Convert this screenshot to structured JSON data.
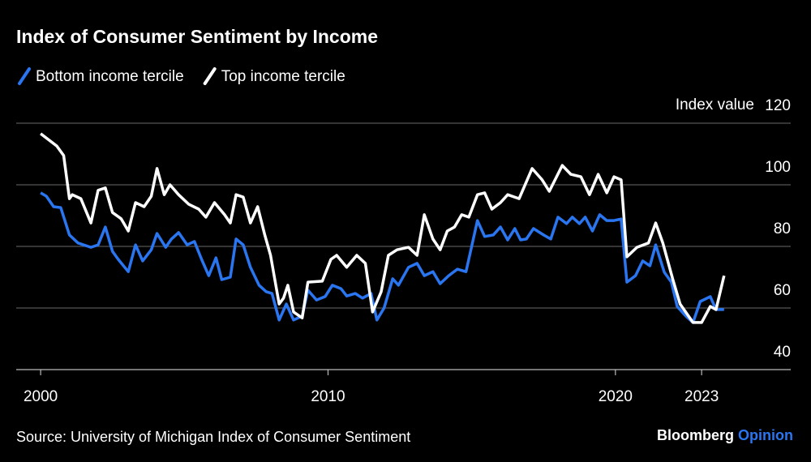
{
  "chart_data": {
    "type": "line",
    "title": "Index of Consumer Sentiment by Income",
    "y_label": "Index value",
    "source": "Source: University of Michigan Index of Consumer Sentiment",
    "branding": [
      "Bloomberg",
      "Opinion"
    ],
    "xlim": [
      1999.15,
      2026.1
    ],
    "xticks": [
      2000,
      2010,
      2020,
      2023
    ],
    "ylim": [
      40,
      120
    ],
    "yticks": [
      40,
      60,
      80,
      100,
      120
    ],
    "grid": true,
    "legend": "top-left",
    "series": [
      {
        "name": "Bottom income tercile",
        "color": "#2a75f0",
        "x": [
          2000,
          2000.2,
          2000.45,
          2000.7,
          2001.0,
          2001.3,
          2001.75,
          2002.0,
          2002.25,
          2002.5,
          2002.7,
          2003.05,
          2003.3,
          2003.55,
          2003.85,
          2004.05,
          2004.35,
          2004.55,
          2004.8,
          2005.1,
          2005.35,
          2005.6,
          2005.85,
          2006.1,
          2006.3,
          2006.6,
          2006.8,
          2007.05,
          2007.3,
          2007.6,
          2007.85,
          2008.05,
          2008.3,
          2008.55,
          2008.8,
          2009.1,
          2009.3,
          2009.6,
          2009.9,
          2010.15,
          2010.45,
          2010.65,
          2010.95,
          2011.2,
          2011.5,
          2011.7,
          2011.95,
          2012.25,
          2012.45,
          2012.8,
          2013.1,
          2013.35,
          2013.65,
          2013.9,
          2014.2,
          2014.5,
          2014.8,
          2015.2,
          2015.45,
          2015.75,
          2016.0,
          2016.25,
          2016.5,
          2016.7,
          2016.9,
          2017.15,
          2017.5,
          2017.75,
          2018.0,
          2018.3,
          2018.5,
          2018.75,
          2018.95,
          2019.2,
          2019.45,
          2019.7,
          2019.95,
          2020.2,
          2020.4,
          2020.7,
          2020.95,
          2021.2,
          2021.4,
          2021.7,
          2021.95,
          2022.15,
          2022.45,
          2022.7,
          2022.95,
          2023.3,
          2023.5,
          2023.78
        ],
        "values": [
          97.4,
          96.3,
          92.9,
          92.6,
          83.7,
          81.1,
          79.7,
          80.5,
          86.3,
          78.4,
          75.8,
          71.8,
          80.5,
          75.3,
          78.9,
          84.2,
          79.7,
          82.4,
          84.5,
          80.5,
          81.6,
          75.8,
          70.5,
          76.3,
          69.2,
          70,
          82.4,
          80.5,
          73.2,
          67.4,
          65.3,
          64.7,
          56.1,
          61.3,
          56.1,
          57.4,
          65.8,
          62.6,
          63.7,
          67.4,
          66.3,
          63.9,
          64.7,
          63.2,
          64.7,
          56.1,
          60,
          69.5,
          67.4,
          73.2,
          74.5,
          70.5,
          71.8,
          67.9,
          70.5,
          72.6,
          71.8,
          88.4,
          83.2,
          83.7,
          86.3,
          82.1,
          85.8,
          82.1,
          82.4,
          85.8,
          83.7,
          82.4,
          89.5,
          87.4,
          89.5,
          87.4,
          89.5,
          85,
          90.3,
          88.4,
          88.4,
          88.9,
          68.4,
          70.5,
          75.3,
          73.7,
          80.5,
          71.6,
          68.4,
          60.5,
          57.4,
          55.3,
          62.1,
          63.7,
          59.5,
          59.5
        ]
      },
      {
        "name": "Top income tercile",
        "color": "#ffffff",
        "x": [
          2000.0,
          2000.56,
          2000.8,
          2001.0,
          2001.1,
          2001.4,
          2001.75,
          2002.0,
          2002.25,
          2002.5,
          2002.8,
          2003.05,
          2003.3,
          2003.6,
          2003.85,
          2004.05,
          2004.3,
          2004.5,
          2004.8,
          2005.15,
          2005.5,
          2005.75,
          2006.05,
          2006.4,
          2006.6,
          2006.8,
          2007.05,
          2007.3,
          2007.55,
          2007.8,
          2008.0,
          2008.3,
          2008.45,
          2008.6,
          2008.8,
          2009.1,
          2009.3,
          2009.8,
          2010.1,
          2010.3,
          2010.65,
          2011.0,
          2011.3,
          2011.55,
          2011.85,
          2012.1,
          2012.4,
          2012.8,
          2013.1,
          2013.35,
          2013.65,
          2013.9,
          2014.15,
          2014.4,
          2014.65,
          2014.9,
          2015.2,
          2015.45,
          2015.7,
          2016.0,
          2016.25,
          2016.65,
          2017.1,
          2017.45,
          2017.7,
          2018.15,
          2018.45,
          2018.8,
          2019.1,
          2019.4,
          2019.7,
          2019.95,
          2020.2,
          2020.4,
          2020.75,
          2021.15,
          2021.4,
          2021.65,
          2022.0,
          2022.25,
          2022.7,
          2023.0,
          2023.3,
          2023.5,
          2023.78
        ],
        "values": [
          116.6,
          112.6,
          109.5,
          95.5,
          96.8,
          95.5,
          87.6,
          98.2,
          99,
          91,
          89,
          85,
          94.2,
          92.9,
          96.3,
          105.3,
          96.8,
          100,
          96.8,
          93.7,
          92.1,
          89.5,
          94.2,
          90.3,
          87.6,
          96.8,
          96,
          87.6,
          92.9,
          83.7,
          77.1,
          61.3,
          63.2,
          67.4,
          58.7,
          56.8,
          68.4,
          68.7,
          75.8,
          77.1,
          73.2,
          77.1,
          74.5,
          58.7,
          65.3,
          77.1,
          78.9,
          79.7,
          77.1,
          90.3,
          82.4,
          78.9,
          85,
          86.3,
          90.3,
          89.5,
          96.8,
          97.4,
          92.1,
          94.2,
          96.8,
          95.5,
          105.3,
          101.6,
          97.9,
          106.3,
          103.4,
          102.6,
          96.8,
          103.4,
          97.4,
          102.6,
          101.6,
          76.6,
          79.7,
          81.1,
          87.6,
          81.1,
          69.2,
          61.3,
          55.3,
          55.3,
          60.5,
          59.5,
          70.5
        ]
      }
    ]
  }
}
